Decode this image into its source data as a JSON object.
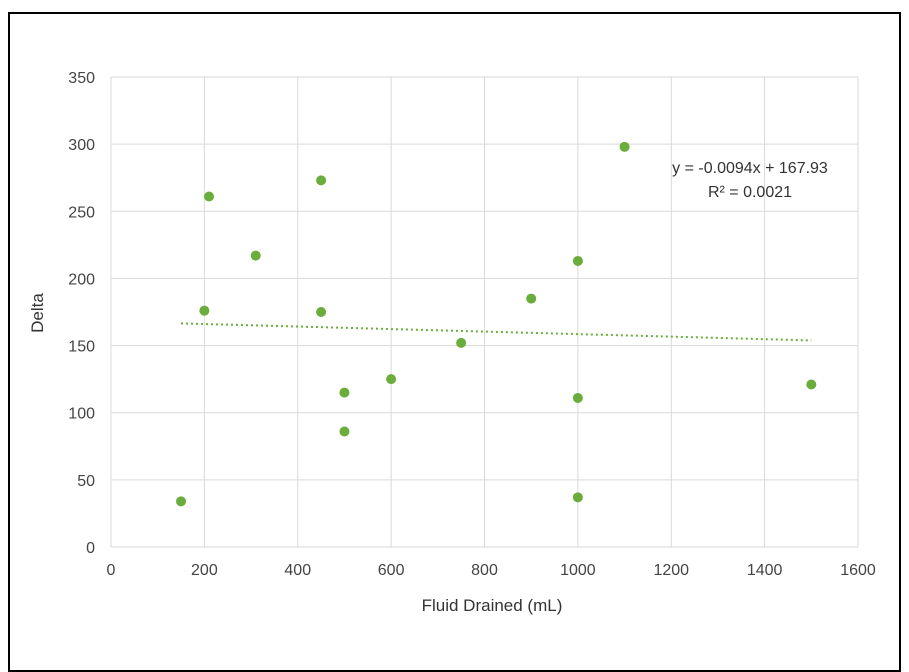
{
  "chart_data": {
    "type": "scatter",
    "xlabel": "Fluid Drained (mL)",
    "ylabel": "Delta",
    "xlim": [
      0,
      1600
    ],
    "ylim": [
      0,
      350
    ],
    "xticks": [
      0,
      200,
      400,
      600,
      800,
      1000,
      1200,
      1400,
      1600
    ],
    "yticks": [
      0,
      50,
      100,
      150,
      200,
      250,
      300,
      350
    ],
    "grid": true,
    "legend": "none",
    "series": [
      {
        "color": "#6aad3c",
        "points": [
          {
            "x": 150,
            "y": 34
          },
          {
            "x": 200,
            "y": 176
          },
          {
            "x": 210,
            "y": 261
          },
          {
            "x": 310,
            "y": 217
          },
          {
            "x": 450,
            "y": 273
          },
          {
            "x": 450,
            "y": 175
          },
          {
            "x": 500,
            "y": 115
          },
          {
            "x": 500,
            "y": 86
          },
          {
            "x": 600,
            "y": 125
          },
          {
            "x": 750,
            "y": 152
          },
          {
            "x": 900,
            "y": 185
          },
          {
            "x": 1000,
            "y": 213
          },
          {
            "x": 1000,
            "y": 111
          },
          {
            "x": 1000,
            "y": 37
          },
          {
            "x": 1100,
            "y": 298
          },
          {
            "x": 1500,
            "y": 121
          }
        ]
      }
    ],
    "trendline": {
      "type": "linear",
      "slope": -0.0094,
      "intercept": 167.93,
      "x_range": [
        150,
        1500
      ],
      "style": "dotted",
      "color": "#6aad3c",
      "equation": "y = -0.0094x + 167.93",
      "r_squared": "R² = 0.0021"
    }
  }
}
